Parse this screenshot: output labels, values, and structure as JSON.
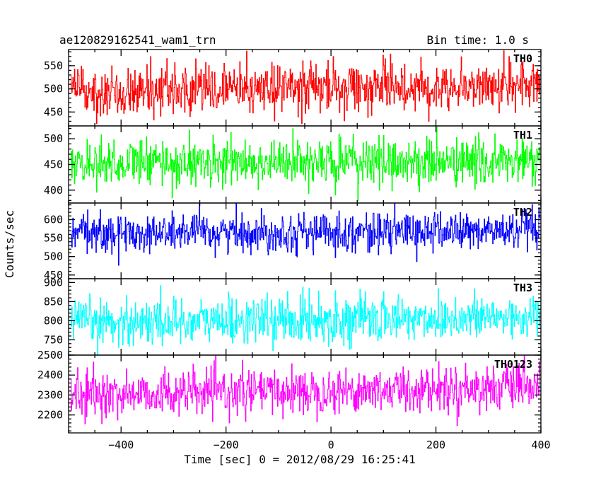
{
  "chart_data": {
    "type": "line",
    "title": "ae120829162541_wam1_trn",
    "subtitle": "Bin time: 1.0 s",
    "xlabel": "Time [sec] 0 = 2012/08/29 16:25:41",
    "ylabel": "Counts/sec",
    "xlim": [
      -500,
      400
    ],
    "x_ticks": [
      -400,
      -200,
      0,
      200,
      400
    ],
    "bin_time": 1.0,
    "grid": false,
    "panels": [
      {
        "name": "TH0",
        "color": "#ff0000",
        "ylim": [
          420,
          585
        ],
        "y_ticks": [
          450,
          500,
          550
        ],
        "mean": 496,
        "sd": 26,
        "trend_end": 12,
        "min": 425,
        "max": 585
      },
      {
        "name": "TH1",
        "color": "#00ff00",
        "ylim": [
          375,
          525
        ],
        "y_ticks": [
          400,
          450,
          500
        ],
        "mean": 453,
        "sd": 23,
        "trend_end": 2,
        "min": 378,
        "max": 525
      },
      {
        "name": "TH2",
        "color": "#0000ff",
        "ylim": [
          440,
          645
        ],
        "y_ticks": [
          450,
          500,
          550,
          600
        ],
        "mean": 562,
        "sd": 26,
        "trend_end": 8,
        "min": 443,
        "max": 645
      },
      {
        "name": "TH3",
        "color": "#00ffff",
        "ylim": [
          710,
          910
        ],
        "y_ticks": [
          750,
          800,
          850,
          900
        ],
        "mean": 795,
        "sd": 30,
        "trend_end": 15,
        "min": 712,
        "max": 905
      },
      {
        "name": "TH0123",
        "color": "#ff00ff",
        "ylim": [
          2110,
          2500
        ],
        "y_ticks": [
          2200,
          2300,
          2400,
          2500
        ],
        "mean": 2300,
        "sd": 55,
        "trend_end": 40,
        "min": 2112,
        "max": 2500
      }
    ]
  }
}
